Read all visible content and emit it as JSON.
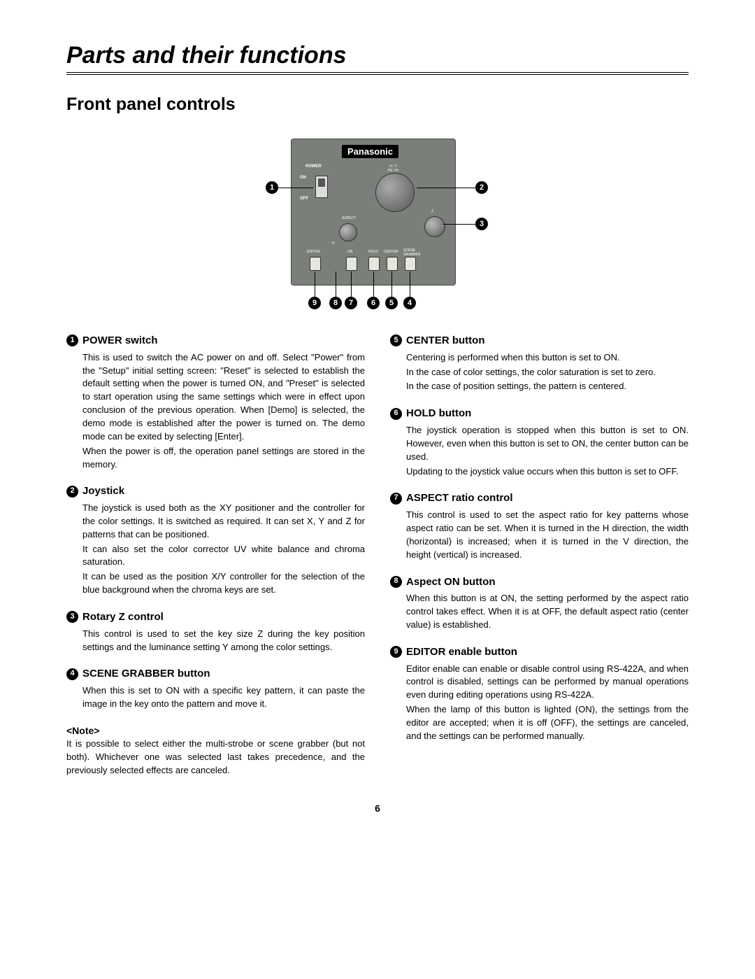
{
  "page": {
    "main_title": "Parts and their functions",
    "section_title": "Front panel controls",
    "page_number": "6"
  },
  "diagram": {
    "brand": "Panasonic",
    "labels": {
      "power": "POWER",
      "on": "ON",
      "off": "OFF",
      "xy": "X / Y\nPb / Pr",
      "aspect": "ASPECT",
      "z": "Z",
      "h": "H",
      "editor": "EDITOR",
      "on2": "ON",
      "hold": "HOLD",
      "center": "CENTER",
      "scene": "SCENE\nGRABBER"
    },
    "callouts": [
      "1",
      "2",
      "3",
      "4",
      "5",
      "6",
      "7",
      "8",
      "9"
    ]
  },
  "colors": {
    "panel_bg": "#7a7f7a",
    "callout_bg": "#000000",
    "callout_fg": "#ffffff",
    "text": "#000000"
  },
  "left_items": [
    {
      "num": "1",
      "title": "POWER switch",
      "paras": [
        "This is used to switch the AC power on and off.  Select \"Power\" from the \"Setup\" initial setting screen: \"Reset\" is selected to establish the default setting when the power is turned ON, and \"Preset\" is selected to start operation using the same settings which were in effect upon conclusion of the previous operation.  When [Demo] is selected, the demo mode is established after the power is turned on.  The demo mode can be exited by selecting [Enter].",
        "When the power is off, the operation panel settings are stored in the memory."
      ]
    },
    {
      "num": "2",
      "title": "Joystick",
      "paras": [
        "The joystick is used both as the XY positioner and the controller for the color settings.  It is switched as required.  It can set X, Y and Z for patterns that can be positioned.",
        "It can also set the color corrector UV white balance and chroma saturation.",
        "It can be used as the position X/Y controller for the selection of the blue background when the chroma keys are set."
      ]
    },
    {
      "num": "3",
      "title": "Rotary Z control",
      "paras": [
        "This control is used to set the key size Z during the key position settings and the luminance setting Y among the color settings."
      ]
    },
    {
      "num": "4",
      "title": "SCENE GRABBER button",
      "paras": [
        "When this is set to ON with a specific key pattern, it can paste the image in the key onto the pattern and move it."
      ]
    }
  ],
  "note": {
    "head": "<Note>",
    "body": "It is possible to select either the multi-strobe or scene grabber (but not both).  Whichever one was selected last takes precedence, and the previously selected effects are canceled."
  },
  "right_items": [
    {
      "num": "5",
      "title": "CENTER button",
      "paras": [
        "Centering is performed when this button is set to ON.",
        "In the case of color settings, the color saturation is set to zero.",
        "In the case of position settings, the pattern is centered."
      ]
    },
    {
      "num": "6",
      "title": "HOLD button",
      "paras": [
        "The joystick operation is stopped when this button is set to ON.  However, even when this button is set to ON, the center button can be used.",
        "Updating to the joystick value occurs when this button is set to OFF."
      ]
    },
    {
      "num": "7",
      "title": "ASPECT ratio control",
      "paras": [
        "This control is used to set the aspect ratio for key patterns whose aspect ratio can be set.  When it is turned in the H direction, the width (horizontal) is increased; when it is turned in the V direction, the height (vertical) is increased."
      ]
    },
    {
      "num": "8",
      "title": "Aspect ON button",
      "paras": [
        "When this button is at ON, the setting performed by the aspect ratio control takes effect.  When it is at OFF, the default aspect ratio (center value) is established."
      ]
    },
    {
      "num": "9",
      "title": "EDITOR enable button",
      "paras": [
        "Editor enable can enable or disable control using RS-422A, and when control is disabled, settings can be performed by manual operations even during editing operations using RS-422A.",
        "When the lamp of this button is lighted (ON), the settings from the editor are accepted; when it is off (OFF), the settings are canceled, and the settings can be performed manually."
      ]
    }
  ]
}
